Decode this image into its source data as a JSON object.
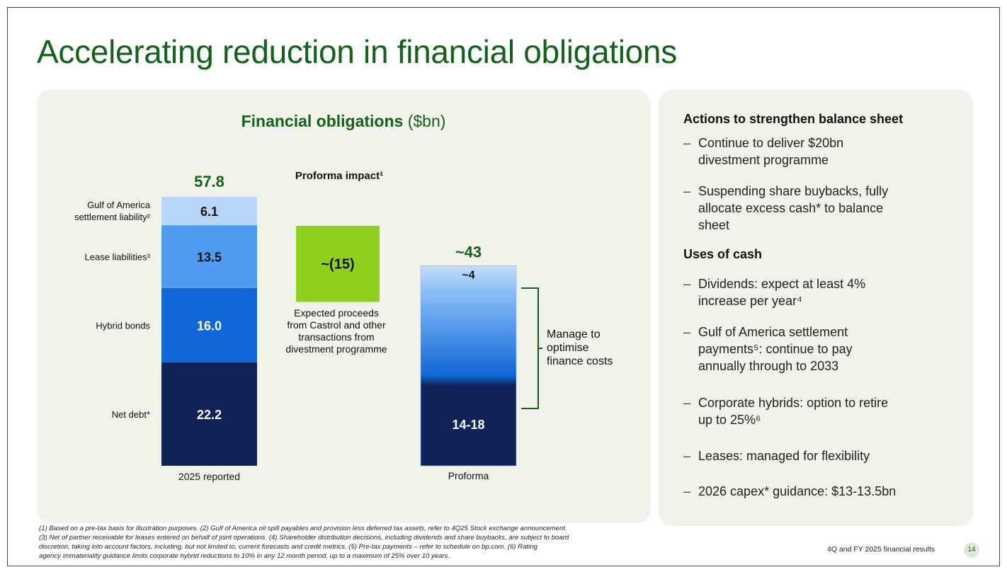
{
  "title": "Accelerating reduction in financial obligations",
  "chart_title_bold": "Financial obligations",
  "chart_title_unit": "($bn)",
  "chart_data": {
    "type": "bar",
    "stacked": true,
    "categories": [
      "2025 reported",
      "Proforma"
    ],
    "totals": [
      "57.8",
      "~43"
    ],
    "series": [
      {
        "name": "Net debt*",
        "values": [
          22.2,
          null
        ]
      },
      {
        "name": "Hybrid bonds",
        "values": [
          16.0,
          null
        ]
      },
      {
        "name": "Lease liabilities³",
        "values": [
          13.5,
          null
        ]
      },
      {
        "name": "Gulf of America settlement liability²",
        "values": [
          6.1,
          4
        ]
      }
    ],
    "value_labels": {
      "reported": [
        "22.2",
        "16.0",
        "13.5",
        "6.1"
      ],
      "proforma_top": "~4",
      "proforma_base": "14-18"
    },
    "proforma_base_range": [
      14,
      18
    ],
    "proforma_impact": {
      "label": "Proforma impact¹",
      "value_label": "~(15)",
      "value": -15
    },
    "series_labels": [
      "Net debt*",
      "Hybrid bonds",
      "Lease liabilities³",
      "Gulf of America settlement liability²"
    ],
    "colors": {
      "net_debt": "#0f2359",
      "hybrid_bonds": "#1066d6",
      "lease": "#4f9bf0",
      "gulf": "#b8d6fb",
      "impact": "#8fd11e",
      "bracket": "#14611b",
      "total": "#14611b"
    }
  },
  "annotations": {
    "proceeds": [
      "Expected proceeds",
      "from Castrol and other",
      "transactions from",
      "divestment programme"
    ],
    "manage": [
      "Manage to",
      "optimise",
      "finance costs"
    ]
  },
  "right": {
    "heading1": "Actions to strengthen balance sheet",
    "actions": [
      [
        "Continue to deliver $20bn",
        "divestment programme"
      ],
      [
        "Suspending share buybacks, fully",
        "allocate excess cash* to balance",
        "sheet"
      ]
    ],
    "heading2": "Uses of cash",
    "uses": [
      [
        "Dividends: expect at least 4%",
        "increase per year⁴"
      ],
      [
        "Gulf of America settlement",
        "payments⁵: continue to pay",
        "annually through to 2033"
      ],
      [
        "Corporate hybrids: option to retire",
        "up to 25%⁶"
      ],
      [
        "Leases: managed for flexibility"
      ],
      [
        "2026 capex* guidance: $13-13.5bn"
      ]
    ],
    "dash": "–"
  },
  "footnotes": [
    "(1) Based on a pre-tax basis for illustration purposes.     (2) Gulf of America oil spill payables and provision less deferred tax assets, refer to 4Q25 Stock exchange announcement.",
    "(3) Net of partner receivable for leases entered on behalf of joint operations.     (4) Shareholder distribution decisions, including dividends and share buybacks, are subject to board",
    "discretion, taking into account factors, including, but not limited to, current forecasts and credit metrics.     (5) Pre-tax payments – refer to schedule on bp.com.     (6) Rating",
    "agency immateriality guidance limits corporate hybrid reductions to 10% in any 12 month period, up to a maximum of 25% over 10 years."
  ],
  "footer": "4Q and FY 2025 financial results",
  "page_number": "14"
}
